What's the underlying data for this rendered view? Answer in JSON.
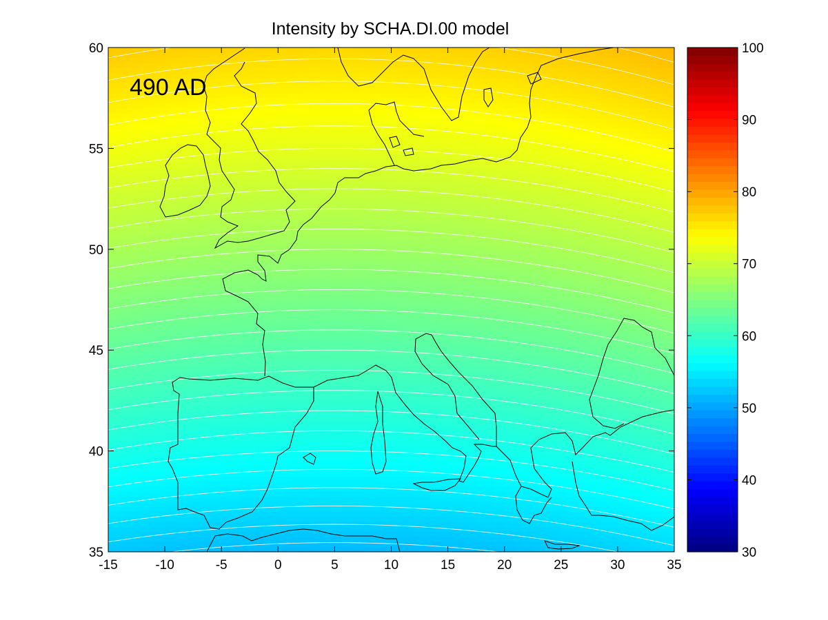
{
  "chart_data": {
    "type": "heatmap",
    "title": "Intensity by SCHA.DI.00 model",
    "annotation": "490 AD",
    "xlabel": "",
    "ylabel": "",
    "xlim": [
      -15,
      35
    ],
    "ylim": [
      35,
      60
    ],
    "x_ticks": [
      "-15",
      "-10",
      "-5",
      "0",
      "5",
      "10",
      "15",
      "20",
      "25",
      "30",
      "35"
    ],
    "y_ticks": [
      "35",
      "40",
      "45",
      "50",
      "55",
      "60"
    ],
    "colorbar": {
      "range": [
        30,
        100
      ],
      "ticks": [
        "30",
        "40",
        "50",
        "60",
        "70",
        "80",
        "90",
        "100"
      ],
      "colormap": "jet"
    },
    "field": {
      "description": "Intensity contours, increasing northward, slightly curved (higher at east/west edges)",
      "contour_interval": 1,
      "center_lon": 5,
      "values_at_center_lon": [
        {
          "lat": 35,
          "value": 51.5
        },
        {
          "lat": 40,
          "value": 57.0
        },
        {
          "lat": 45,
          "value": 62.0
        },
        {
          "lat": 50,
          "value": 67.0
        },
        {
          "lat": 55,
          "value": 72.0
        },
        {
          "lat": 60,
          "value": 76.5
        }
      ],
      "edge_increase_per_25deg": 1.5
    },
    "coastline_color": "#000000",
    "contour_line_color": "#ffffff",
    "grid": false
  }
}
